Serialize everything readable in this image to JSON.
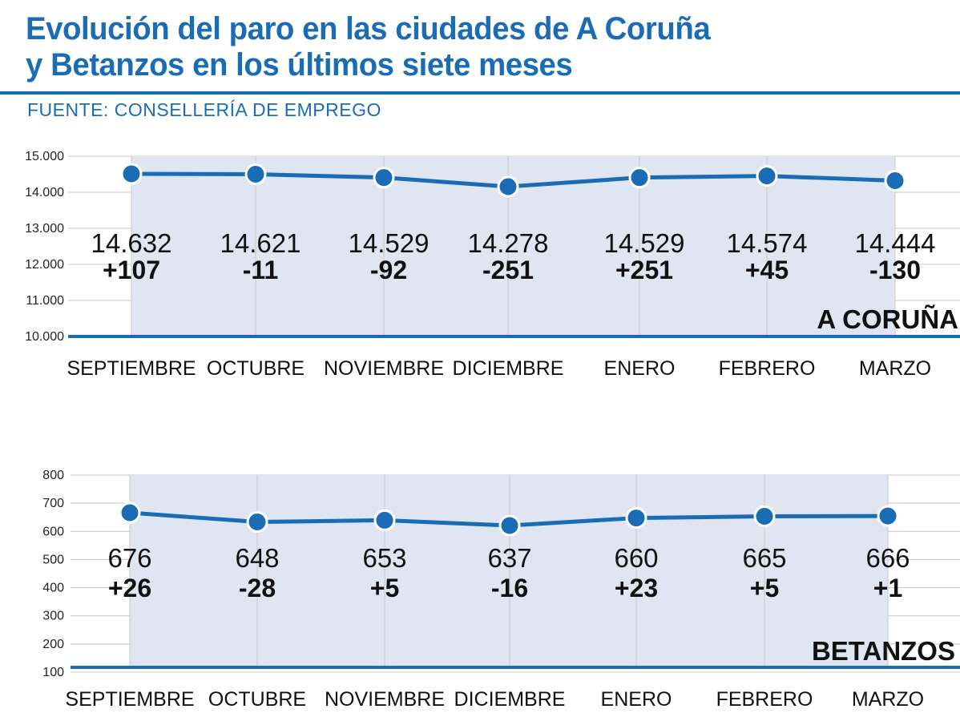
{
  "header": {
    "title_line1": "Evolución del paro en las ciudades de A Coruña",
    "title_line2": "y Betanzos en los últimos siete meses",
    "source": "FUENTE: CONSELLERÍA DE EMPREGO"
  },
  "colors": {
    "accent": "#1a6db5",
    "fill": "#dfe6f2",
    "grid": "#c8c8c8"
  },
  "chart_data": [
    {
      "type": "area",
      "title": "A CORUÑA",
      "categories": [
        "SEPTIEMBRE",
        "OCTUBRE",
        "NOVIEMBRE",
        "DICIEMBRE",
        "ENERO",
        "FEBRERO",
        "MARZO"
      ],
      "values": [
        14632,
        14621,
        14529,
        14278,
        14529,
        14574,
        14444
      ],
      "value_labels": [
        "14.632",
        "14.621",
        "14.529",
        "14.278",
        "14.529",
        "14.574",
        "14.444"
      ],
      "changes": [
        "+107",
        "-11",
        "-92",
        "-251",
        "+251",
        "+45",
        "-130"
      ],
      "yticks": [
        "15.000",
        "14.000",
        "13.000",
        "12.000",
        "11.000",
        "10.000"
      ],
      "ylim": [
        10000,
        15000
      ],
      "grid": true
    },
    {
      "type": "area",
      "title": "BETANZOS",
      "categories": [
        "SEPTIEMBRE",
        "OCTUBRE",
        "NOVIEMBRE",
        "DICIEMBRE",
        "ENERO",
        "FEBRERO",
        "MARZO"
      ],
      "values": [
        676,
        648,
        653,
        637,
        660,
        665,
        666
      ],
      "value_labels": [
        "676",
        "648",
        "653",
        "637",
        "660",
        "665",
        "666"
      ],
      "changes": [
        "+26",
        "-28",
        "+5",
        "-16",
        "+23",
        "+5",
        "+1"
      ],
      "yticks": [
        "800",
        "700",
        "600",
        "500",
        "400",
        "300",
        "200",
        "100"
      ],
      "ylim": [
        100,
        800
      ],
      "grid": true
    }
  ]
}
